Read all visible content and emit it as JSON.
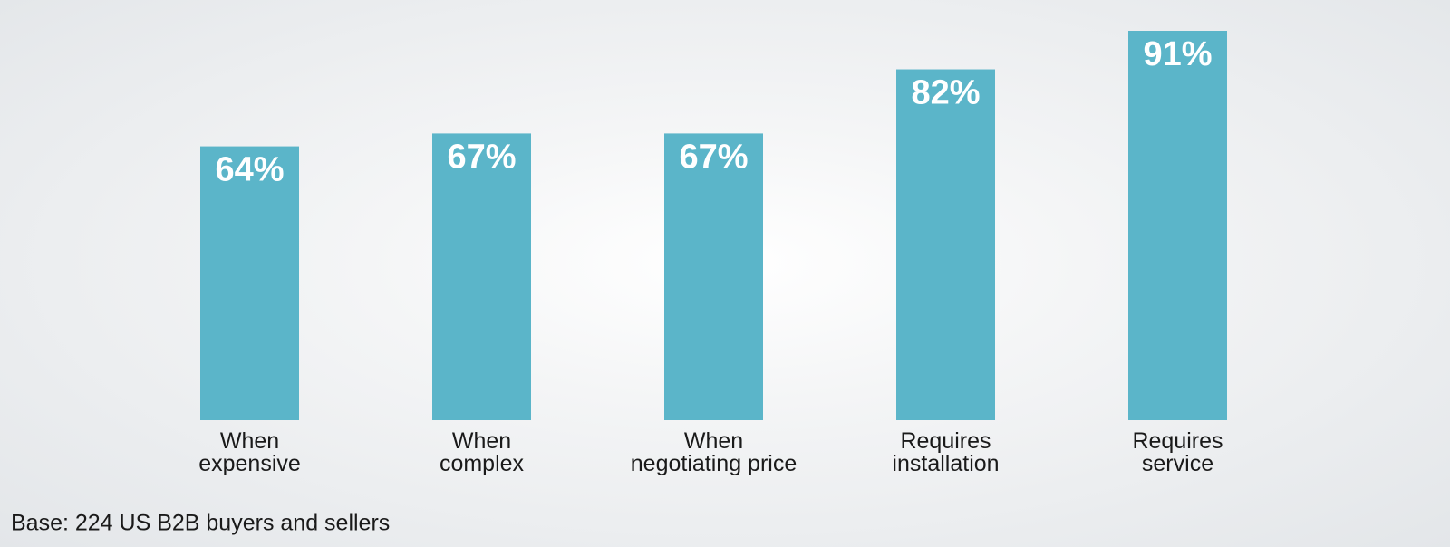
{
  "chart_data": {
    "type": "bar",
    "categories": [
      "When\nexpensive",
      "When\ncomplex",
      "When\nnegotiating price",
      "Requires\ninstallation",
      "Requires\nservice"
    ],
    "values": [
      64,
      67,
      67,
      82,
      91
    ],
    "value_labels": [
      "64%",
      "67%",
      "67%",
      "82%",
      "91%"
    ],
    "color": "#5bb5c9",
    "note": "Base: 224 US B2B buyers and sellers"
  }
}
